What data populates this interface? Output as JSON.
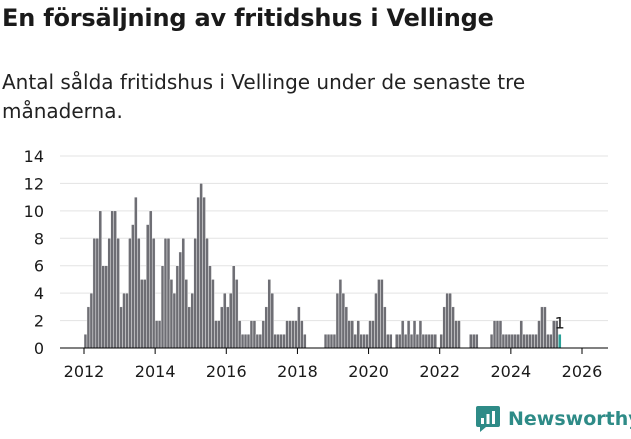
{
  "header": {
    "title": "En försäljning av fritidshus i Vellinge",
    "subtitle": "Antal sålda fritidshus i Vellinge under de senaste tre månaderna."
  },
  "brand": {
    "name": "Newsworthy"
  },
  "colors": {
    "bar": "#6e6e74",
    "highlight": "#2aa198",
    "grid": "#e3e3e3",
    "axis": "#000000",
    "brand": "#2e8b87"
  },
  "chart_data": {
    "type": "bar",
    "title": "En försäljning av fritidshus i Vellinge",
    "xlabel": "",
    "ylabel": "",
    "x_range": [
      2012,
      2026
    ],
    "ylim": [
      0,
      14
    ],
    "y_ticks": [
      "0",
      "2",
      "4",
      "6",
      "8",
      "10",
      "12",
      "14"
    ],
    "x_ticks": [
      "2012",
      "2014",
      "2016",
      "2018",
      "2020",
      "2022",
      "2024",
      "2026"
    ],
    "grid": true,
    "interval": "monthly, rolling three-month count",
    "start": "2012-01",
    "values": [
      1,
      3,
      4,
      8,
      8,
      10,
      6,
      6,
      8,
      10,
      10,
      8,
      3,
      4,
      4,
      8,
      9,
      11,
      8,
      5,
      5,
      9,
      10,
      8,
      2,
      2,
      6,
      8,
      8,
      5,
      4,
      6,
      7,
      8,
      5,
      3,
      4,
      8,
      11,
      12,
      11,
      8,
      6,
      5,
      2,
      2,
      3,
      4,
      3,
      4,
      6,
      5,
      2,
      1,
      1,
      1,
      2,
      2,
      1,
      1,
      2,
      3,
      5,
      4,
      1,
      1,
      1,
      1,
      2,
      2,
      2,
      2,
      3,
      2,
      1,
      0,
      0,
      0,
      0,
      0,
      0,
      1,
      1,
      1,
      1,
      4,
      5,
      4,
      3,
      2,
      2,
      1,
      2,
      1,
      1,
      1,
      2,
      2,
      4,
      5,
      5,
      3,
      1,
      1,
      0,
      1,
      1,
      2,
      1,
      2,
      1,
      2,
      1,
      2,
      1,
      1,
      1,
      1,
      1,
      0,
      1,
      3,
      4,
      4,
      3,
      2,
      2,
      0,
      0,
      0,
      1,
      1,
      1,
      0,
      0,
      0,
      0,
      1,
      2,
      2,
      2,
      1,
      1,
      1,
      1,
      1,
      1,
      2,
      1,
      1,
      1,
      1,
      1,
      2,
      3,
      3,
      1,
      1,
      2,
      2,
      1
    ],
    "last_value_label": "1"
  }
}
